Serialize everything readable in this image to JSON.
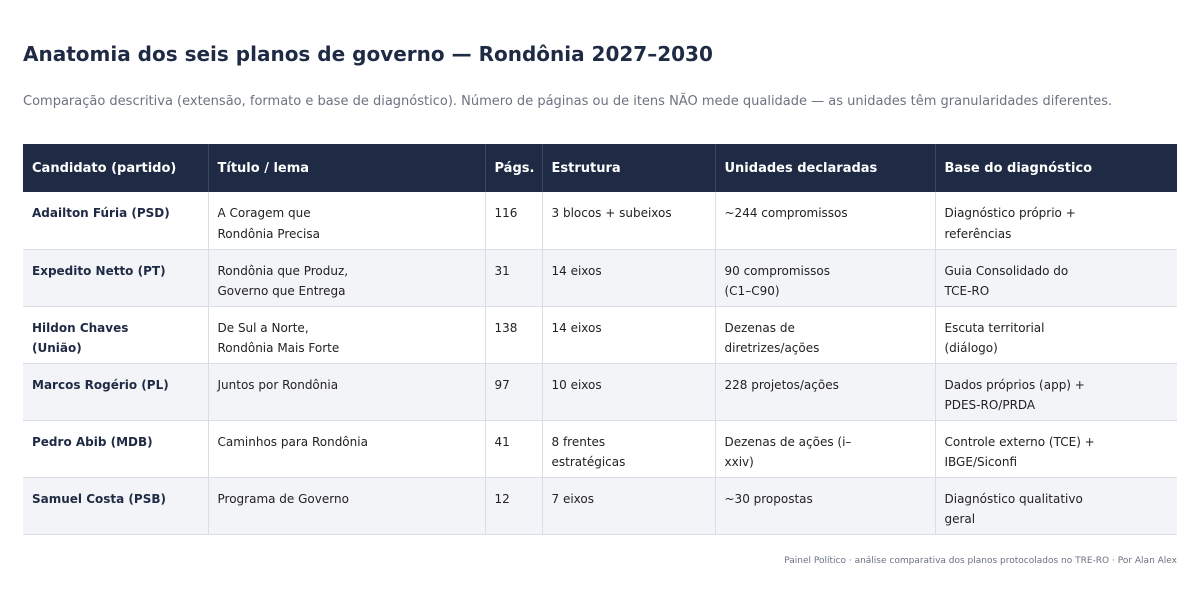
{
  "title": "Anatomia dos seis planos de governo — Rondônia 2027–2030",
  "subtitle": "Comparação descritiva (extensão, formato e base de diagnóstico). Número de páginas ou de itens NÃO mede qualidade — as unidades têm granularidades diferentes.",
  "table": {
    "headers": [
      "Candidato (partido)",
      "Título / lema",
      "Págs.",
      "Estrutura",
      "Unidades declaradas",
      "Base do diagnóstico"
    ],
    "rows": [
      {
        "candidate": "Adailton Fúria (PSD)",
        "title": "A Coragem que Rondônia Precisa",
        "pages": "116",
        "structure": "3 blocos + subeixos",
        "units": "~244 compromissos",
        "basis": "Diagnóstico próprio + referências"
      },
      {
        "candidate": "Expedito Netto (PT)",
        "title": "Rondônia que Produz, Governo que Entrega",
        "pages": "31",
        "structure": "14 eixos",
        "units": "90 compromissos (C1–C90)",
        "basis": "Guia Consolidado do TCE-RO"
      },
      {
        "candidate": "Hildon Chaves (União)",
        "title": "De Sul a Norte, Rondônia Mais Forte",
        "pages": "138",
        "structure": "14 eixos",
        "units": "Dezenas de diretrizes/ações",
        "basis": "Escuta territorial (diálogo)"
      },
      {
        "candidate": "Marcos Rogério (PL)",
        "title": "Juntos por Rondônia",
        "pages": "97",
        "structure": "10 eixos",
        "units": "228 projetos/ações",
        "basis": "Dados próprios (app) + PDES-RO/PRDA"
      },
      {
        "candidate": "Pedro Abib (MDB)",
        "title": "Caminhos para Rondônia",
        "pages": "41",
        "structure": "8 frentes estratégicas",
        "units": "Dezenas de ações (i–xxiv)",
        "basis": "Controle externo (TCE) + IBGE/Siconfi"
      },
      {
        "candidate": "Samuel Costa (PSB)",
        "title": "Programa de Governo",
        "pages": "12",
        "structure": "7 eixos",
        "units": "~30 propostas",
        "basis": "Diagnóstico qualitativo geral"
      }
    ]
  },
  "footer": "Painel Político · análise comparativa dos planos protocolados no TRE-RO · Por Alan Alex",
  "colors": {
    "header_bg": "#1f2a44",
    "alt_row_bg": "#f3f4f7",
    "title_text": "#1f2a44",
    "muted_text": "#6b7280"
  }
}
